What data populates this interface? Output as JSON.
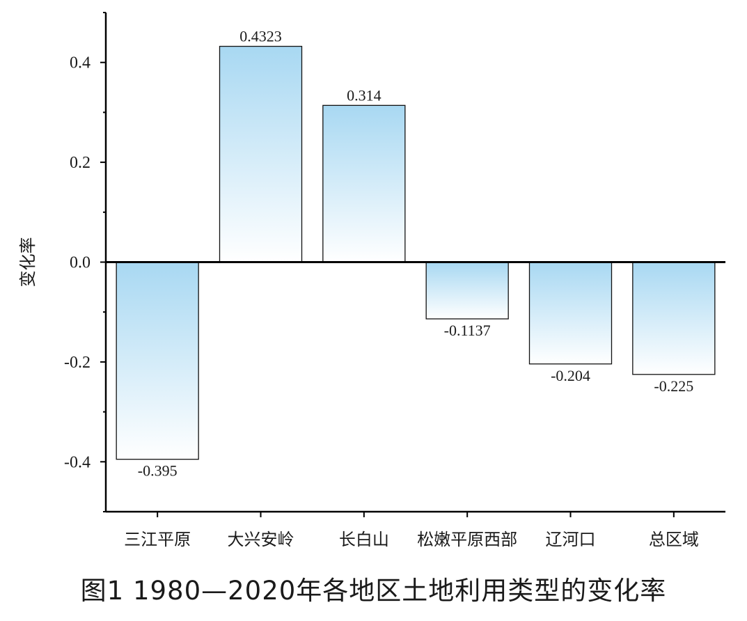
{
  "figure_caption": "图1  1980—2020年各地区土地利用类型的变化率",
  "chart_data": {
    "type": "bar",
    "categories": [
      "三江平原",
      "大兴安岭",
      "长白山",
      "松嫩平原西部",
      "辽河口",
      "总区域"
    ],
    "values": [
      -0.395,
      0.4323,
      0.314,
      -0.1137,
      -0.204,
      -0.225
    ],
    "value_labels": [
      "-0.395",
      "0.4323",
      "0.314",
      "-0.1137",
      "-0.204",
      "-0.225"
    ],
    "ylabel": "变化率",
    "xlabel": "",
    "ylim": [
      -0.5,
      0.5
    ],
    "yticks": [
      -0.4,
      -0.2,
      0.0,
      0.2,
      0.4
    ],
    "ytick_labels": [
      "-0.4",
      "-0.2",
      "0.0",
      "0.2",
      "0.4"
    ],
    "grid": false,
    "bar_gradient_colors": [
      "#a8d8f2",
      "#ffffff"
    ]
  }
}
